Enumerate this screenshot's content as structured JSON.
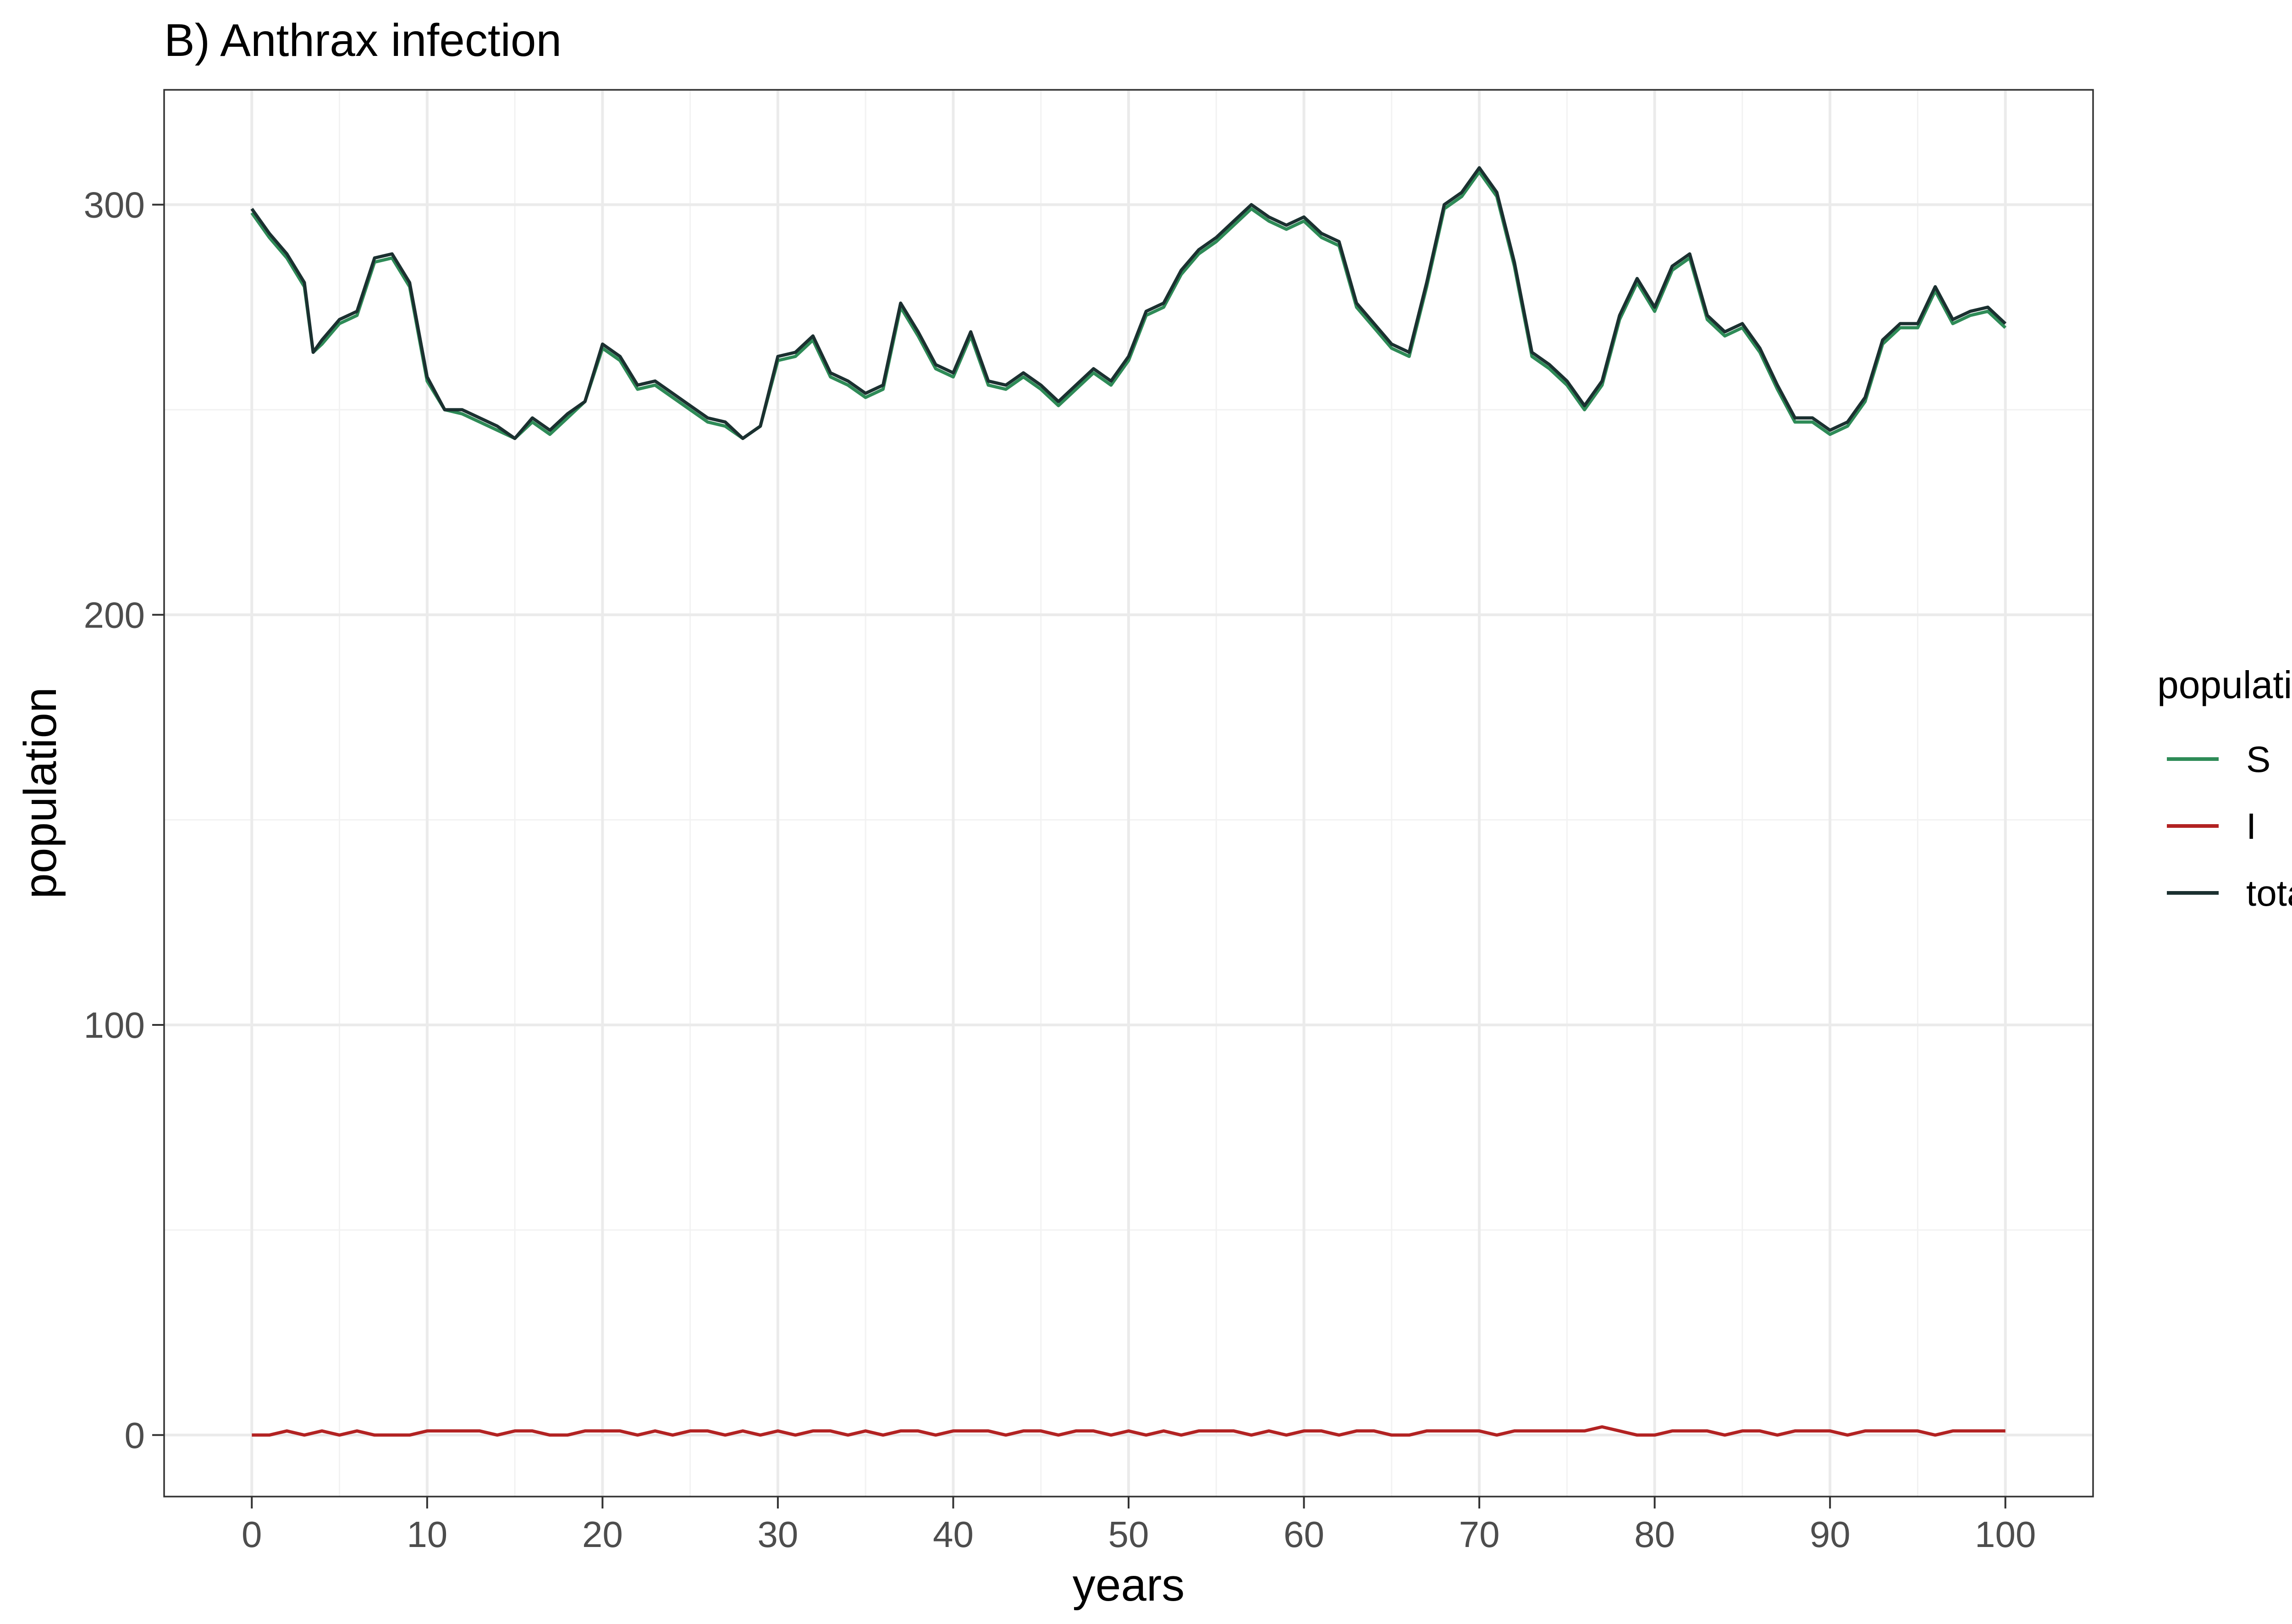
{
  "chart_data": {
    "type": "line",
    "title": "B) Anthrax infection",
    "xlabel": "years",
    "ylabel": "population",
    "xlim": [
      -5,
      105
    ],
    "ylim": [
      -15,
      328
    ],
    "x_ticks": [
      0,
      10,
      20,
      30,
      40,
      50,
      60,
      70,
      80,
      90,
      100
    ],
    "x_tick_labels": [
      "0",
      "10",
      "20",
      "30",
      "40",
      "50",
      "60",
      "70",
      "80",
      "90",
      "100"
    ],
    "y_ticks": [
      0,
      100,
      200,
      300
    ],
    "y_tick_labels": [
      "0",
      "100",
      "200",
      "300"
    ],
    "grid": true,
    "legend": {
      "title": "population",
      "position": "right"
    },
    "series": [
      {
        "name": "S",
        "color": "#2e8b57",
        "x": [
          0,
          1,
          2,
          3,
          3.5,
          4,
          5,
          6,
          7,
          8,
          9,
          10,
          11,
          12,
          13,
          14,
          15,
          16,
          17,
          18,
          19,
          20,
          21,
          22,
          23,
          24,
          25,
          26,
          27,
          28,
          29,
          30,
          31,
          32,
          33,
          34,
          35,
          36,
          37,
          38,
          39,
          40,
          41,
          42,
          43,
          44,
          45,
          46,
          47,
          48,
          49,
          50,
          51,
          52,
          53,
          54,
          55,
          56,
          57,
          58,
          59,
          60,
          61,
          62,
          63,
          64,
          65,
          66,
          67,
          68,
          69,
          70,
          71,
          72,
          73,
          74,
          75,
          76,
          77,
          78,
          79,
          80,
          81,
          82,
          83,
          84,
          85,
          86,
          87,
          88,
          89,
          90,
          91,
          92,
          93,
          94,
          95,
          96,
          97,
          98,
          99,
          100
        ],
        "values": [
          298,
          292,
          287,
          280,
          264,
          266,
          271,
          273,
          286,
          287,
          280,
          257,
          250,
          249,
          247,
          245,
          243,
          247,
          244,
          248,
          252,
          265,
          262,
          255,
          256,
          253,
          250,
          247,
          246,
          243,
          246,
          262,
          263,
          267,
          258,
          256,
          253,
          255,
          275,
          268,
          260,
          258,
          268,
          256,
          255,
          258,
          255,
          251,
          255,
          259,
          256,
          262,
          273,
          275,
          283,
          288,
          291,
          295,
          299,
          296,
          294,
          296,
          292,
          290,
          275,
          270,
          265,
          263,
          280,
          299,
          302,
          308,
          302,
          285,
          263,
          260,
          256,
          250,
          256,
          272,
          281,
          274,
          284,
          287,
          272,
          268,
          270,
          264,
          255,
          247,
          247,
          244,
          246,
          252,
          266,
          270,
          270,
          279,
          271,
          273,
          274,
          270
        ]
      },
      {
        "name": "I",
        "color": "#b22222",
        "x": [
          0,
          1,
          2,
          3,
          4,
          5,
          6,
          7,
          8,
          9,
          10,
          11,
          12,
          13,
          14,
          15,
          16,
          17,
          18,
          19,
          20,
          21,
          22,
          23,
          24,
          25,
          26,
          27,
          28,
          29,
          30,
          31,
          32,
          33,
          34,
          35,
          36,
          37,
          38,
          39,
          40,
          41,
          42,
          43,
          44,
          45,
          46,
          47,
          48,
          49,
          50,
          51,
          52,
          53,
          54,
          55,
          56,
          57,
          58,
          59,
          60,
          61,
          62,
          63,
          64,
          65,
          66,
          67,
          68,
          69,
          70,
          71,
          72,
          73,
          74,
          75,
          76,
          77,
          78,
          79,
          80,
          81,
          82,
          83,
          84,
          85,
          86,
          87,
          88,
          89,
          90,
          91,
          92,
          93,
          94,
          95,
          96,
          97,
          98,
          99,
          100
        ],
        "values": [
          0,
          0,
          1,
          0,
          1,
          0,
          1,
          0,
          0,
          0,
          1,
          1,
          1,
          1,
          0,
          1,
          1,
          0,
          0,
          1,
          1,
          1,
          0,
          1,
          0,
          1,
          1,
          0,
          1,
          0,
          1,
          0,
          1,
          1,
          0,
          1,
          0,
          1,
          1,
          0,
          1,
          1,
          1,
          0,
          1,
          1,
          0,
          1,
          1,
          0,
          1,
          0,
          1,
          0,
          1,
          1,
          1,
          0,
          1,
          0,
          1,
          1,
          0,
          1,
          1,
          0,
          0,
          1,
          1,
          1,
          1,
          0,
          1,
          1,
          1,
          1,
          1,
          2,
          1,
          0,
          0,
          1,
          1,
          1,
          0,
          1,
          1,
          0,
          1,
          1,
          1,
          0,
          1,
          1,
          1,
          1,
          0,
          1,
          1,
          1,
          1
        ]
      },
      {
        "name": "total",
        "color": "#1b3030",
        "x": [
          0,
          1,
          2,
          3,
          3.5,
          4,
          5,
          6,
          7,
          8,
          9,
          10,
          11,
          12,
          13,
          14,
          15,
          16,
          17,
          18,
          19,
          20,
          21,
          22,
          23,
          24,
          25,
          26,
          27,
          28,
          29,
          30,
          31,
          32,
          33,
          34,
          35,
          36,
          37,
          38,
          39,
          40,
          41,
          42,
          43,
          44,
          45,
          46,
          47,
          48,
          49,
          50,
          51,
          52,
          53,
          54,
          55,
          56,
          57,
          58,
          59,
          60,
          61,
          62,
          63,
          64,
          65,
          66,
          67,
          68,
          69,
          70,
          71,
          72,
          73,
          74,
          75,
          76,
          77,
          78,
          79,
          80,
          81,
          82,
          83,
          84,
          85,
          86,
          87,
          88,
          89,
          90,
          91,
          92,
          93,
          94,
          95,
          96,
          97,
          98,
          99,
          100
        ],
        "values": [
          299,
          293,
          288,
          281,
          264,
          267,
          272,
          274,
          287,
          288,
          281,
          258,
          250,
          250,
          248,
          246,
          243,
          248,
          245,
          249,
          252,
          266,
          263,
          256,
          257,
          254,
          251,
          248,
          247,
          243,
          246,
          263,
          264,
          268,
          259,
          257,
          254,
          256,
          276,
          269,
          261,
          259,
          269,
          257,
          256,
          259,
          256,
          252,
          256,
          260,
          257,
          263,
          274,
          276,
          284,
          289,
          292,
          296,
          300,
          297,
          295,
          297,
          293,
          291,
          276,
          271,
          266,
          264,
          281,
          300,
          303,
          309,
          303,
          286,
          264,
          261,
          257,
          251,
          257,
          273,
          282,
          275,
          285,
          288,
          273,
          269,
          271,
          265,
          256,
          248,
          248,
          245,
          247,
          253,
          267,
          271,
          271,
          280,
          272,
          274,
          275,
          271
        ]
      }
    ]
  }
}
